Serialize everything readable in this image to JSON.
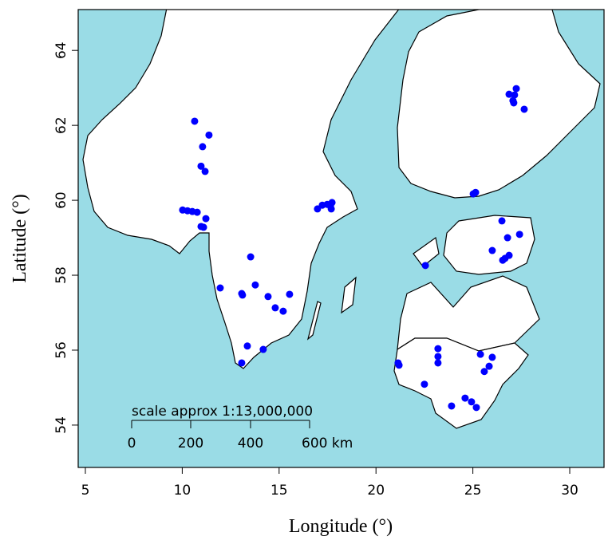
{
  "chart_data": {
    "type": "scatter",
    "xlabel": "Longitude (°)",
    "ylabel": "Latitude (°)",
    "xlim": [
      4.63,
      31.77
    ],
    "ylim": [
      52.87,
      65.09
    ],
    "xticks": [
      5,
      10,
      15,
      20,
      25,
      30
    ],
    "yticks": [
      54,
      56,
      58,
      60,
      62,
      64
    ],
    "color": "#0000ff",
    "x": [
      10.64,
      11.38,
      11.05,
      10.97,
      11.18,
      10.02,
      10.27,
      10.52,
      10.77,
      11.22,
      10.97,
      11.1,
      13.53,
      11.96,
      13.07,
      13.11,
      13.77,
      14.43,
      14.8,
      15.21,
      15.54,
      13.36,
      14.18,
      13.07,
      16.98,
      17.23,
      17.48,
      17.73,
      17.69,
      17.65,
      26.87,
      27.24,
      27.15,
      27.07,
      27.11,
      27.65,
      25.02,
      25.14,
      26.5,
      26.79,
      27.41,
      26.0,
      26.87,
      26.66,
      26.54,
      22.55,
      21.14,
      21.19,
      23.2,
      23.2,
      23.2,
      22.5,
      25.39,
      26.0,
      25.84,
      25.59,
      23.9,
      24.6,
      24.93,
      25.18
    ],
    "y": [
      62.11,
      61.74,
      61.43,
      60.91,
      60.77,
      59.74,
      59.72,
      59.7,
      59.68,
      59.51,
      59.3,
      59.28,
      58.49,
      57.66,
      57.51,
      57.47,
      57.74,
      57.43,
      57.13,
      57.04,
      57.49,
      56.11,
      56.02,
      55.66,
      59.77,
      59.87,
      59.89,
      59.94,
      59.77,
      59.85,
      62.83,
      62.98,
      62.81,
      62.66,
      62.6,
      62.43,
      60.17,
      60.21,
      59.45,
      59.0,
      59.09,
      58.66,
      58.53,
      58.45,
      58.4,
      58.26,
      55.66,
      55.6,
      56.04,
      55.83,
      55.66,
      55.09,
      55.89,
      55.81,
      55.57,
      55.43,
      54.51,
      54.72,
      54.62,
      54.47
    ],
    "scale_bar": {
      "title": "scale approx 1:13,000,000",
      "labels": [
        "0",
        "200",
        "400",
        "600 km"
      ]
    }
  }
}
